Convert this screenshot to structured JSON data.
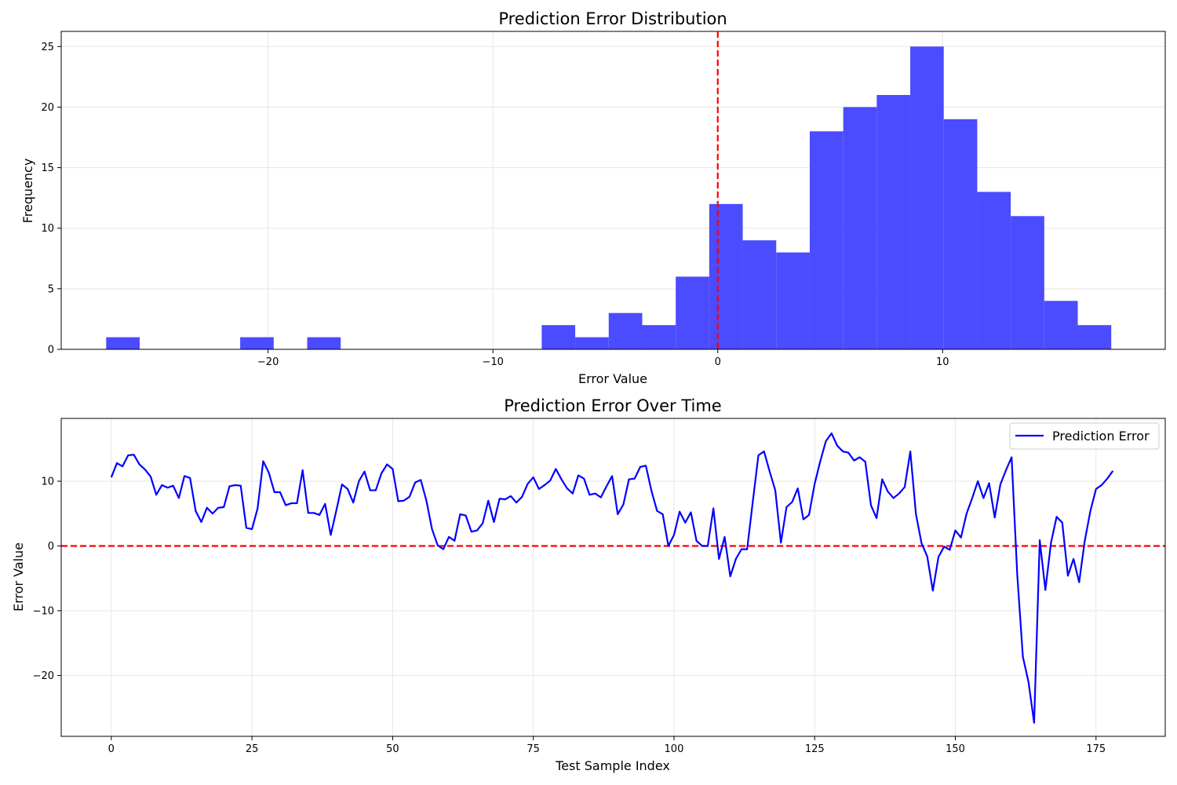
{
  "chart_data": [
    {
      "type": "bar",
      "title": "Prediction Error Distribution",
      "xlabel": "Error Value",
      "ylabel": "Frequency",
      "xlim": [
        -29.2,
        19.9
      ],
      "ylim": [
        0,
        26.25
      ],
      "xticks": [
        -20,
        -10,
        0,
        10
      ],
      "yticks": [
        0,
        5,
        10,
        15,
        20,
        25
      ],
      "grid": true,
      "bar_color": "#4b4bff",
      "zero_line_color": "#ff0000",
      "zero_line_x": 0,
      "bins": [
        {
          "x0": -27.2,
          "x1": -25.71,
          "count": 1
        },
        {
          "x0": -25.71,
          "x1": -24.22,
          "count": 0
        },
        {
          "x0": -24.22,
          "x1": -22.73,
          "count": 0
        },
        {
          "x0": -22.73,
          "x1": -21.24,
          "count": 0
        },
        {
          "x0": -21.24,
          "x1": -19.75,
          "count": 1
        },
        {
          "x0": -19.75,
          "x1": -18.26,
          "count": 0
        },
        {
          "x0": -18.26,
          "x1": -16.77,
          "count": 1
        },
        {
          "x0": -16.77,
          "x1": -15.28,
          "count": 0
        },
        {
          "x0": -15.28,
          "x1": -13.79,
          "count": 0
        },
        {
          "x0": -13.79,
          "x1": -12.3,
          "count": 0
        },
        {
          "x0": -12.3,
          "x1": -10.81,
          "count": 0
        },
        {
          "x0": -10.81,
          "x1": -9.32,
          "count": 0
        },
        {
          "x0": -9.32,
          "x1": -7.83,
          "count": 0
        },
        {
          "x0": -7.83,
          "x1": -6.34,
          "count": 2
        },
        {
          "x0": -6.34,
          "x1": -4.85,
          "count": 1
        },
        {
          "x0": -4.85,
          "x1": -3.36,
          "count": 3
        },
        {
          "x0": -3.36,
          "x1": -1.87,
          "count": 2
        },
        {
          "x0": -1.87,
          "x1": -0.38,
          "count": 6
        },
        {
          "x0": -0.38,
          "x1": 1.11,
          "count": 12
        },
        {
          "x0": 1.11,
          "x1": 2.6,
          "count": 9
        },
        {
          "x0": 2.6,
          "x1": 4.09,
          "count": 8
        },
        {
          "x0": 4.09,
          "x1": 5.58,
          "count": 18
        },
        {
          "x0": 5.58,
          "x1": 7.07,
          "count": 20
        },
        {
          "x0": 7.07,
          "x1": 8.56,
          "count": 21
        },
        {
          "x0": 8.56,
          "x1": 10.05,
          "count": 25
        },
        {
          "x0": 10.05,
          "x1": 11.54,
          "count": 19
        },
        {
          "x0": 11.54,
          "x1": 13.03,
          "count": 13
        },
        {
          "x0": 13.03,
          "x1": 14.52,
          "count": 11
        },
        {
          "x0": 14.52,
          "x1": 16.01,
          "count": 4
        },
        {
          "x0": 16.01,
          "x1": 17.5,
          "count": 2
        }
      ]
    },
    {
      "type": "line",
      "title": "Prediction Error Over Time",
      "xlabel": "Test Sample Index",
      "ylabel": "Error Value",
      "xlim": [
        -8.9,
        187.3
      ],
      "ylim": [
        -29.4,
        19.7
      ],
      "xticks": [
        0,
        25,
        50,
        75,
        100,
        125,
        150,
        175
      ],
      "yticks": [
        -20,
        -10,
        0,
        10
      ],
      "grid": true,
      "legend_position": "top-right",
      "zero_line_color": "#ff0000",
      "zero_line_y": 0,
      "series": [
        {
          "name": "Prediction Error",
          "color": "#0000ff",
          "y": [
            10.6,
            12.8,
            12.3,
            14.0,
            14.1,
            12.6,
            11.8,
            10.7,
            7.9,
            9.4,
            9.0,
            9.3,
            7.4,
            10.8,
            10.5,
            5.4,
            3.7,
            5.9,
            5.0,
            5.9,
            6.0,
            9.2,
            9.4,
            9.3,
            2.8,
            2.6,
            5.8,
            13.1,
            11.3,
            8.3,
            8.3,
            6.3,
            6.6,
            6.6,
            11.7,
            5.1,
            5.1,
            4.8,
            6.5,
            1.7,
            5.5,
            9.5,
            8.8,
            6.7,
            10.0,
            11.5,
            8.6,
            8.6,
            11.2,
            12.6,
            11.9,
            6.9,
            7.0,
            7.6,
            9.8,
            10.2,
            7.0,
            2.6,
            0.1,
            -0.5,
            1.4,
            0.8,
            4.9,
            4.7,
            2.2,
            2.4,
            3.5,
            7.0,
            3.7,
            7.3,
            7.2,
            7.7,
            6.7,
            7.6,
            9.6,
            10.6,
            8.8,
            9.4,
            10.1,
            11.9,
            10.3,
            8.9,
            8.1,
            10.9,
            10.4,
            7.9,
            8.1,
            7.5,
            9.2,
            10.8,
            4.9,
            6.4,
            10.3,
            10.4,
            12.2,
            12.4,
            8.5,
            5.4,
            4.9,
            0.0,
            1.7,
            5.3,
            3.6,
            5.2,
            0.8,
            0.0,
            0.0,
            5.8,
            -2.0,
            1.4,
            -4.7,
            -2.0,
            -0.5,
            -0.5,
            6.8,
            14.0,
            14.6,
            11.5,
            8.6,
            0.5,
            6.0,
            6.8,
            8.9,
            4.1,
            4.8,
            9.6,
            13.1,
            16.2,
            17.4,
            15.5,
            14.6,
            14.4,
            13.2,
            13.7,
            13.0,
            6.3,
            4.3,
            10.3,
            8.4,
            7.4,
            8.1,
            9.1,
            14.6,
            4.9,
            0.4,
            -1.6,
            -6.9,
            -1.7,
            -0.1,
            -0.6,
            2.4,
            1.3,
            5.0,
            7.4,
            10.0,
            7.4,
            9.7,
            4.4,
            9.5,
            11.7,
            13.7,
            -4.4,
            -17.1,
            -21.0,
            -27.3,
            0.9,
            -6.8,
            0.5,
            4.5,
            3.6,
            -4.6,
            -2.0,
            -5.6,
            0.8,
            5.4,
            8.8,
            9.4,
            10.4,
            11.6
          ]
        }
      ]
    }
  ]
}
